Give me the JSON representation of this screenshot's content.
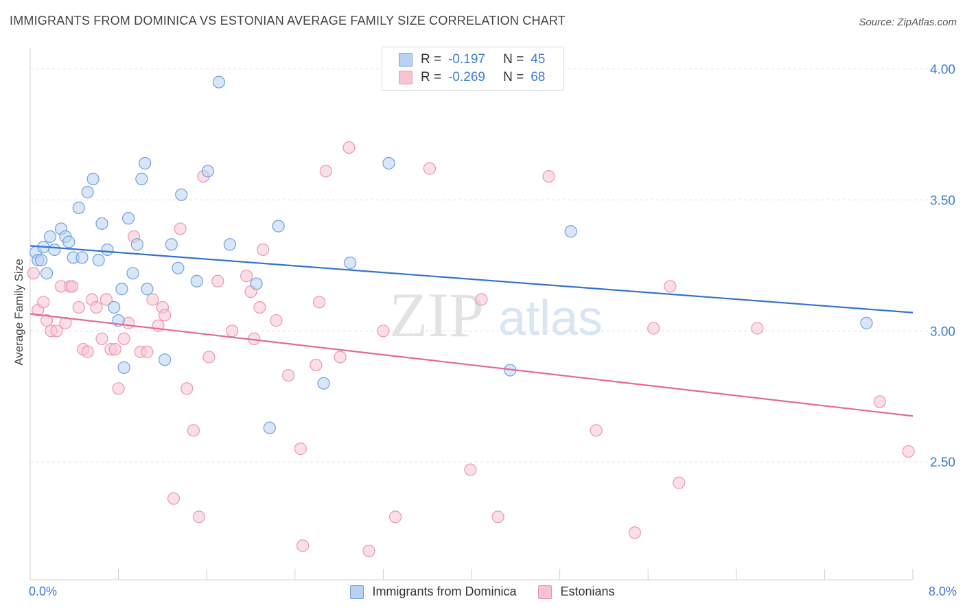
{
  "title": "IMMIGRANTS FROM DOMINICA VS ESTONIAN AVERAGE FAMILY SIZE CORRELATION CHART",
  "source": "Source: ZipAtlas.com",
  "watermark": {
    "zip": "ZIP",
    "atlas": "atlas"
  },
  "legend": {
    "r_label": "R =",
    "n_label": "N =",
    "rows": [
      {
        "r": "-0.197",
        "n": "45"
      },
      {
        "r": "-0.269",
        "n": "68"
      }
    ]
  },
  "bottom_legend": [
    "Immigrants from Dominica",
    "Estonians"
  ],
  "x_labels": {
    "min": "0.0%",
    "max": "8.0%"
  },
  "chart_data": {
    "type": "scatter",
    "title": "IMMIGRANTS FROM DOMINICA VS ESTONIAN AVERAGE FAMILY SIZE CORRELATION CHART",
    "xlabel": "",
    "ylabel": "Average Family Size",
    "xlim": [
      0,
      8
    ],
    "ylim": [
      2.05,
      4.08
    ],
    "y_ticks": [
      {
        "value": 4.0,
        "label": "4.00"
      },
      {
        "value": 3.5,
        "label": "3.50"
      },
      {
        "value": 3.0,
        "label": "3.00"
      },
      {
        "value": 2.5,
        "label": "2.50"
      }
    ],
    "grid": true,
    "legend_position": "top-center",
    "colors": {
      "dominica_fill": "#b9d1f2",
      "dominica_stroke": "#6f9fe0",
      "dominica_line": "#3372d0",
      "estonian_fill": "#f7c4d4",
      "estonian_stroke": "#ec94b2",
      "estonian_line": "#e36a96"
    },
    "series": [
      {
        "name": "Immigrants from Dominica",
        "trend": {
          "x": [
            0,
            8
          ],
          "y": [
            3.325,
            3.07
          ]
        },
        "points": [
          [
            0.05,
            3.3
          ],
          [
            0.07,
            3.27
          ],
          [
            0.1,
            3.27
          ],
          [
            0.12,
            3.32
          ],
          [
            0.15,
            3.22
          ],
          [
            0.18,
            3.36
          ],
          [
            0.22,
            3.31
          ],
          [
            0.28,
            3.39
          ],
          [
            0.32,
            3.36
          ],
          [
            0.35,
            3.34
          ],
          [
            0.39,
            3.28
          ],
          [
            0.44,
            3.47
          ],
          [
            0.47,
            3.28
          ],
          [
            0.52,
            3.53
          ],
          [
            0.57,
            3.58
          ],
          [
            0.62,
            3.27
          ],
          [
            0.65,
            3.41
          ],
          [
            0.7,
            3.31
          ],
          [
            0.76,
            3.09
          ],
          [
            0.8,
            3.04
          ],
          [
            0.83,
            3.16
          ],
          [
            0.85,
            2.86
          ],
          [
            0.89,
            3.43
          ],
          [
            0.93,
            3.22
          ],
          [
            0.97,
            3.33
          ],
          [
            1.01,
            3.58
          ],
          [
            1.04,
            3.64
          ],
          [
            1.06,
            3.16
          ],
          [
            1.22,
            2.89
          ],
          [
            1.28,
            3.33
          ],
          [
            1.34,
            3.24
          ],
          [
            1.37,
            3.52
          ],
          [
            1.51,
            3.19
          ],
          [
            1.61,
            3.61
          ],
          [
            1.71,
            3.95
          ],
          [
            1.81,
            3.33
          ],
          [
            2.05,
            3.18
          ],
          [
            2.17,
            2.63
          ],
          [
            2.25,
            3.4
          ],
          [
            2.66,
            2.8
          ],
          [
            2.9,
            3.26
          ],
          [
            3.25,
            3.64
          ],
          [
            4.35,
            2.85
          ],
          [
            4.9,
            3.38
          ],
          [
            7.58,
            3.03
          ]
        ]
      },
      {
        "name": "Estonians",
        "trend": {
          "x": [
            0,
            8
          ],
          "y": [
            3.065,
            2.675
          ]
        },
        "points": [
          [
            0.03,
            3.22
          ],
          [
            0.07,
            3.08
          ],
          [
            0.12,
            3.11
          ],
          [
            0.15,
            3.04
          ],
          [
            0.19,
            3.0
          ],
          [
            0.24,
            3.0
          ],
          [
            0.28,
            3.17
          ],
          [
            0.32,
            3.03
          ],
          [
            0.36,
            3.17
          ],
          [
            0.38,
            3.17
          ],
          [
            0.44,
            3.09
          ],
          [
            0.48,
            2.93
          ],
          [
            0.52,
            2.92
          ],
          [
            0.56,
            3.12
          ],
          [
            0.6,
            3.09
          ],
          [
            0.65,
            2.97
          ],
          [
            0.69,
            3.12
          ],
          [
            0.73,
            2.93
          ],
          [
            0.77,
            2.93
          ],
          [
            0.8,
            2.78
          ],
          [
            0.85,
            2.97
          ],
          [
            0.89,
            3.03
          ],
          [
            0.94,
            3.36
          ],
          [
            1.0,
            2.92
          ],
          [
            1.06,
            2.92
          ],
          [
            1.11,
            3.12
          ],
          [
            1.16,
            3.02
          ],
          [
            1.2,
            3.09
          ],
          [
            1.22,
            3.06
          ],
          [
            1.3,
            2.36
          ],
          [
            1.36,
            3.39
          ],
          [
            1.42,
            2.78
          ],
          [
            1.48,
            2.62
          ],
          [
            1.53,
            2.29
          ],
          [
            1.57,
            3.59
          ],
          [
            1.62,
            2.9
          ],
          [
            1.7,
            3.19
          ],
          [
            1.83,
            3.0
          ],
          [
            1.96,
            3.21
          ],
          [
            2.0,
            3.15
          ],
          [
            2.03,
            2.97
          ],
          [
            2.08,
            3.09
          ],
          [
            2.11,
            3.31
          ],
          [
            2.23,
            3.04
          ],
          [
            2.34,
            2.83
          ],
          [
            2.45,
            2.55
          ],
          [
            2.47,
            2.18
          ],
          [
            2.59,
            2.87
          ],
          [
            2.62,
            3.11
          ],
          [
            2.68,
            3.61
          ],
          [
            2.81,
            2.9
          ],
          [
            2.89,
            3.7
          ],
          [
            3.07,
            2.16
          ],
          [
            3.2,
            3.0
          ],
          [
            3.31,
            2.29
          ],
          [
            3.62,
            3.62
          ],
          [
            3.99,
            2.47
          ],
          [
            4.09,
            3.12
          ],
          [
            4.24,
            2.29
          ],
          [
            4.7,
            3.59
          ],
          [
            5.13,
            2.62
          ],
          [
            5.48,
            2.23
          ],
          [
            5.65,
            3.01
          ],
          [
            5.8,
            3.17
          ],
          [
            5.88,
            2.42
          ],
          [
            6.59,
            3.01
          ],
          [
            7.7,
            2.73
          ],
          [
            7.96,
            2.54
          ]
        ]
      }
    ]
  }
}
